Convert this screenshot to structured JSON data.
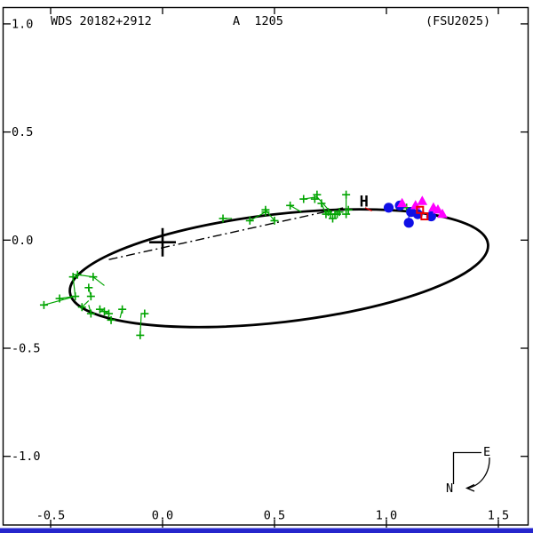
{
  "header": {
    "wds_id": "WDS 20182+2912",
    "discoverer_designation": "A  1205",
    "reference": "(FSU2025)"
  },
  "compass": {
    "north_label": "N",
    "east_label": "E"
  },
  "colors": {
    "green": "#00a400",
    "blue": "#0f0fe6",
    "magenta": "#ff00ff",
    "red": "#ee0000",
    "orbit": "#000000",
    "bottom_strip": "#2626cc"
  },
  "chart_data": {
    "type": "scatter",
    "title": "WDS 20182+2912",
    "subtitle": "A  1205",
    "annotation": "(FSU2025)",
    "xlabel": "",
    "ylabel": "",
    "grid": false,
    "x_axis": {
      "min": -0.5,
      "max": 1.5,
      "ticks": [
        -0.5,
        0.0,
        0.5,
        1.0,
        1.5
      ],
      "tick_labels": [
        "-0.5",
        "0.0",
        "0.5",
        "1.0",
        "1.5"
      ]
    },
    "y_axis": {
      "min": -1.0,
      "max": 1.0,
      "ticks": [
        1.0,
        0.5,
        0.0,
        -0.5,
        -1.0
      ],
      "tick_labels": [
        "1.0",
        "0.5",
        "0.0",
        "-0.5",
        "-1.0"
      ]
    },
    "origin_cross": {
      "x": 0.0,
      "y": -0.01
    },
    "orbit_ellipse": {
      "cx": 0.52,
      "cy": -0.13,
      "rx": 0.94,
      "ry": 0.25,
      "rotation_deg": -6.6
    },
    "node_line": {
      "x1": -0.24,
      "y1": -0.09,
      "x2": 0.81,
      "y2": 0.15,
      "style": "dash-dot"
    },
    "series": [
      {
        "name": "micrometric_green_plus",
        "marker": "plus",
        "color_key": "green",
        "points": [
          [
            -0.53,
            -0.3
          ],
          [
            -0.46,
            -0.27
          ],
          [
            -0.4,
            -0.17
          ],
          [
            -0.38,
            -0.16
          ],
          [
            -0.31,
            -0.17
          ],
          [
            -0.33,
            -0.22
          ],
          [
            -0.32,
            -0.26
          ],
          [
            -0.36,
            -0.31
          ],
          [
            -0.32,
            -0.34
          ],
          [
            -0.28,
            -0.32
          ],
          [
            -0.26,
            -0.33
          ],
          [
            -0.24,
            -0.34
          ],
          [
            -0.23,
            -0.37
          ],
          [
            -0.18,
            -0.32
          ],
          [
            -0.1,
            -0.44
          ],
          [
            -0.08,
            -0.34
          ],
          [
            -0.39,
            -0.26
          ],
          [
            0.27,
            0.1
          ],
          [
            0.39,
            0.09
          ],
          [
            0.46,
            0.14
          ],
          [
            0.46,
            0.13
          ],
          [
            0.5,
            0.09
          ],
          [
            0.57,
            0.16
          ],
          [
            0.63,
            0.19
          ],
          [
            0.68,
            0.19
          ],
          [
            0.69,
            0.21
          ],
          [
            0.71,
            0.17
          ],
          [
            0.73,
            0.12
          ],
          [
            0.74,
            0.13
          ],
          [
            0.75,
            0.12
          ],
          [
            0.76,
            0.1
          ],
          [
            0.77,
            0.12
          ],
          [
            0.78,
            0.12
          ],
          [
            0.79,
            0.13
          ],
          [
            0.82,
            0.21
          ],
          [
            0.83,
            0.14
          ],
          [
            0.82,
            0.12
          ],
          [
            1.09,
            0.15
          ]
        ]
      },
      {
        "name": "speckle_blue_circle",
        "marker": "filled-circle",
        "color_key": "blue",
        "points": [
          [
            1.01,
            0.15
          ],
          [
            1.06,
            0.16
          ],
          [
            1.11,
            0.13
          ],
          [
            1.14,
            0.12
          ],
          [
            1.2,
            0.11
          ],
          [
            1.1,
            0.08
          ]
        ]
      },
      {
        "name": "speckle_magenta_triangle",
        "marker": "filled-triangle",
        "color_key": "magenta",
        "points": [
          [
            1.07,
            0.17
          ],
          [
            1.13,
            0.16
          ],
          [
            1.16,
            0.18
          ],
          [
            1.21,
            0.15
          ],
          [
            1.23,
            0.14
          ],
          [
            1.25,
            0.12
          ]
        ]
      },
      {
        "name": "red_open_square",
        "marker": "open-square",
        "color_key": "red",
        "points": [
          [
            1.15,
            0.14
          ],
          [
            1.17,
            0.11
          ]
        ]
      },
      {
        "name": "hipparcos_H",
        "marker": "letter-H",
        "color_key": "red",
        "points": [
          [
            0.9,
            0.18
          ]
        ]
      }
    ],
    "oc_lines": {
      "green": [
        [
          [
            -0.53,
            -0.3
          ],
          [
            -0.39,
            -0.26
          ]
        ],
        [
          [
            -0.46,
            -0.27
          ],
          [
            -0.39,
            -0.26
          ]
        ],
        [
          [
            -0.4,
            -0.17
          ],
          [
            -0.39,
            -0.26
          ]
        ],
        [
          [
            -0.38,
            -0.16
          ],
          [
            -0.31,
            -0.17
          ]
        ],
        [
          [
            -0.31,
            -0.17
          ],
          [
            -0.26,
            -0.21
          ]
        ],
        [
          [
            -0.33,
            -0.22
          ],
          [
            -0.32,
            -0.26
          ]
        ],
        [
          [
            -0.32,
            -0.34
          ],
          [
            -0.33,
            -0.3
          ]
        ],
        [
          [
            -0.28,
            -0.32
          ],
          [
            -0.24,
            -0.34
          ]
        ],
        [
          [
            -0.18,
            -0.32
          ],
          [
            -0.19,
            -0.36
          ]
        ],
        [
          [
            -0.1,
            -0.44
          ],
          [
            -0.095,
            -0.34
          ]
        ],
        [
          [
            -0.36,
            -0.31
          ],
          [
            -0.33,
            -0.28
          ]
        ],
        [
          [
            0.39,
            0.09
          ],
          [
            0.46,
            0.13
          ]
        ],
        [
          [
            0.46,
            0.14
          ],
          [
            0.5,
            0.09
          ]
        ],
        [
          [
            0.57,
            0.16
          ],
          [
            0.62,
            0.13
          ]
        ],
        [
          [
            0.63,
            0.19
          ],
          [
            0.69,
            0.2
          ]
        ],
        [
          [
            0.69,
            0.2
          ],
          [
            0.75,
            0.13
          ]
        ],
        [
          [
            0.82,
            0.21
          ],
          [
            0.82,
            0.12
          ]
        ],
        [
          [
            0.71,
            0.17
          ],
          [
            0.73,
            0.12
          ]
        ],
        [
          [
            0.27,
            0.1
          ],
          [
            0.31,
            0.1
          ]
        ]
      ],
      "blue": [
        [
          [
            1.1,
            0.08
          ],
          [
            1.1,
            0.13
          ]
        ]
      ],
      "red": [
        [
          [
            0.905,
            0.15
          ],
          [
            0.935,
            0.135
          ]
        ]
      ]
    }
  }
}
